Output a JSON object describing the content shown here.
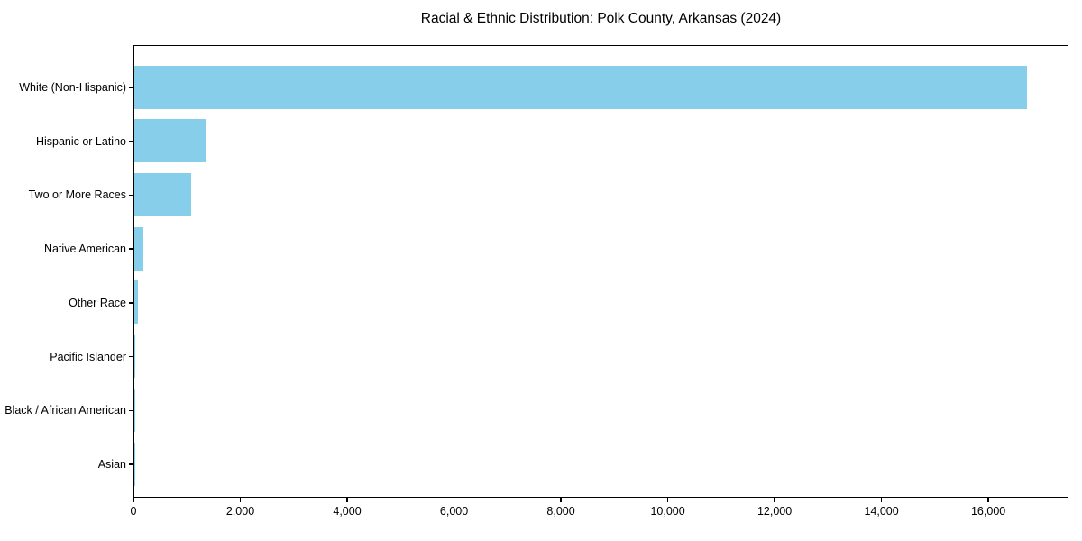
{
  "chart_data": {
    "type": "bar",
    "orientation": "horizontal",
    "title": "Racial & Ethnic Distribution: Polk County, Arkansas (2024)",
    "categories": [
      "White (Non-Hispanic)",
      "Hispanic or Latino",
      "Two or More Races",
      "Native American",
      "Other Race",
      "Pacific Islander",
      "Black / African American",
      "Asian"
    ],
    "values": [
      16700,
      1350,
      1060,
      170,
      65,
      20,
      12,
      5
    ],
    "xlabel": "",
    "ylabel": "",
    "xlim": [
      0,
      17500
    ],
    "xticks": [
      0,
      2000,
      4000,
      6000,
      8000,
      10000,
      12000,
      14000,
      16000
    ],
    "xtick_labels": [
      "0",
      "2,000",
      "4,000",
      "6,000",
      "8,000",
      "10,000",
      "12,000",
      "14,000",
      "16,000"
    ],
    "bar_color": "#87CEEB",
    "text_color": "#000000",
    "grid": false,
    "legend": "none",
    "border": "full-box"
  }
}
